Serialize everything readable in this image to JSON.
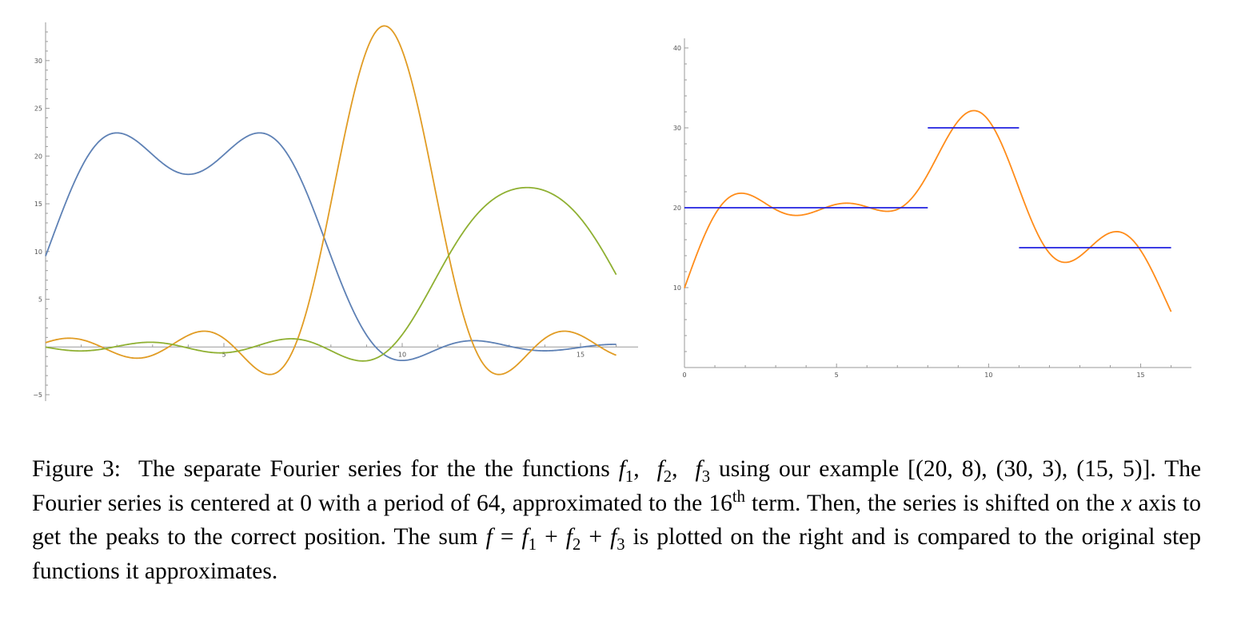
{
  "figure": {
    "caption_label": "Figure 3:",
    "caption_parts": {
      "p1": "The separate Fourier series for the the functions ",
      "p2": " using our example [(20, 8), (30, 3), (15, 5)].  The Fourier series is centered at 0 with a period of 64, approximated to the 16",
      "sup_th": "th",
      "p3": " term. Then, the series is shifted on the ",
      "p4": " axis to get the peaks to the correct position. The sum ",
      "p5": " is plotted on the right and is compared to the original step functions it approximates."
    }
  },
  "chart_data": [
    {
      "type": "line",
      "title": "",
      "xlabel": "",
      "ylabel": "",
      "xlim": [
        0,
        16.3
      ],
      "ylim": [
        -5,
        33
      ],
      "x_ticks": [
        "5",
        "10",
        "15"
      ],
      "y_ticks": [
        "-5",
        "5",
        "10",
        "15",
        "20",
        "25",
        "30"
      ],
      "fourier": {
        "period": 64,
        "terms": 16
      },
      "series": [
        {
          "color": "#5e81b5",
          "step_value": 20,
          "start": 0,
          "width": 8
        },
        {
          "color": "#e19c24",
          "step_value": 30,
          "start": 8,
          "width": 3
        },
        {
          "color": "#8fb032",
          "step_value": 15,
          "start": 11,
          "width": 5
        }
      ],
      "x_range": [
        0,
        16
      ]
    },
    {
      "type": "line",
      "title": "",
      "xlabel": "",
      "ylabel": "",
      "xlim": [
        0,
        16.3
      ],
      "ylim": [
        0,
        40
      ],
      "x_ticks": [
        "0",
        "5",
        "10",
        "15"
      ],
      "y_ticks": [
        "10",
        "20",
        "30",
        "40"
      ],
      "fourier": {
        "period": 64,
        "terms": 16
      },
      "sum_series": {
        "color": "#ff8c1a",
        "x_range": [
          0,
          16
        ]
      },
      "steps": [
        {
          "color": "#2020e0",
          "x": [
            0,
            8
          ],
          "y": 20
        },
        {
          "color": "#2020e0",
          "x": [
            8,
            11
          ],
          "y": 30
        },
        {
          "color": "#2020e0",
          "x": [
            11,
            16
          ],
          "y": 15
        }
      ]
    }
  ]
}
